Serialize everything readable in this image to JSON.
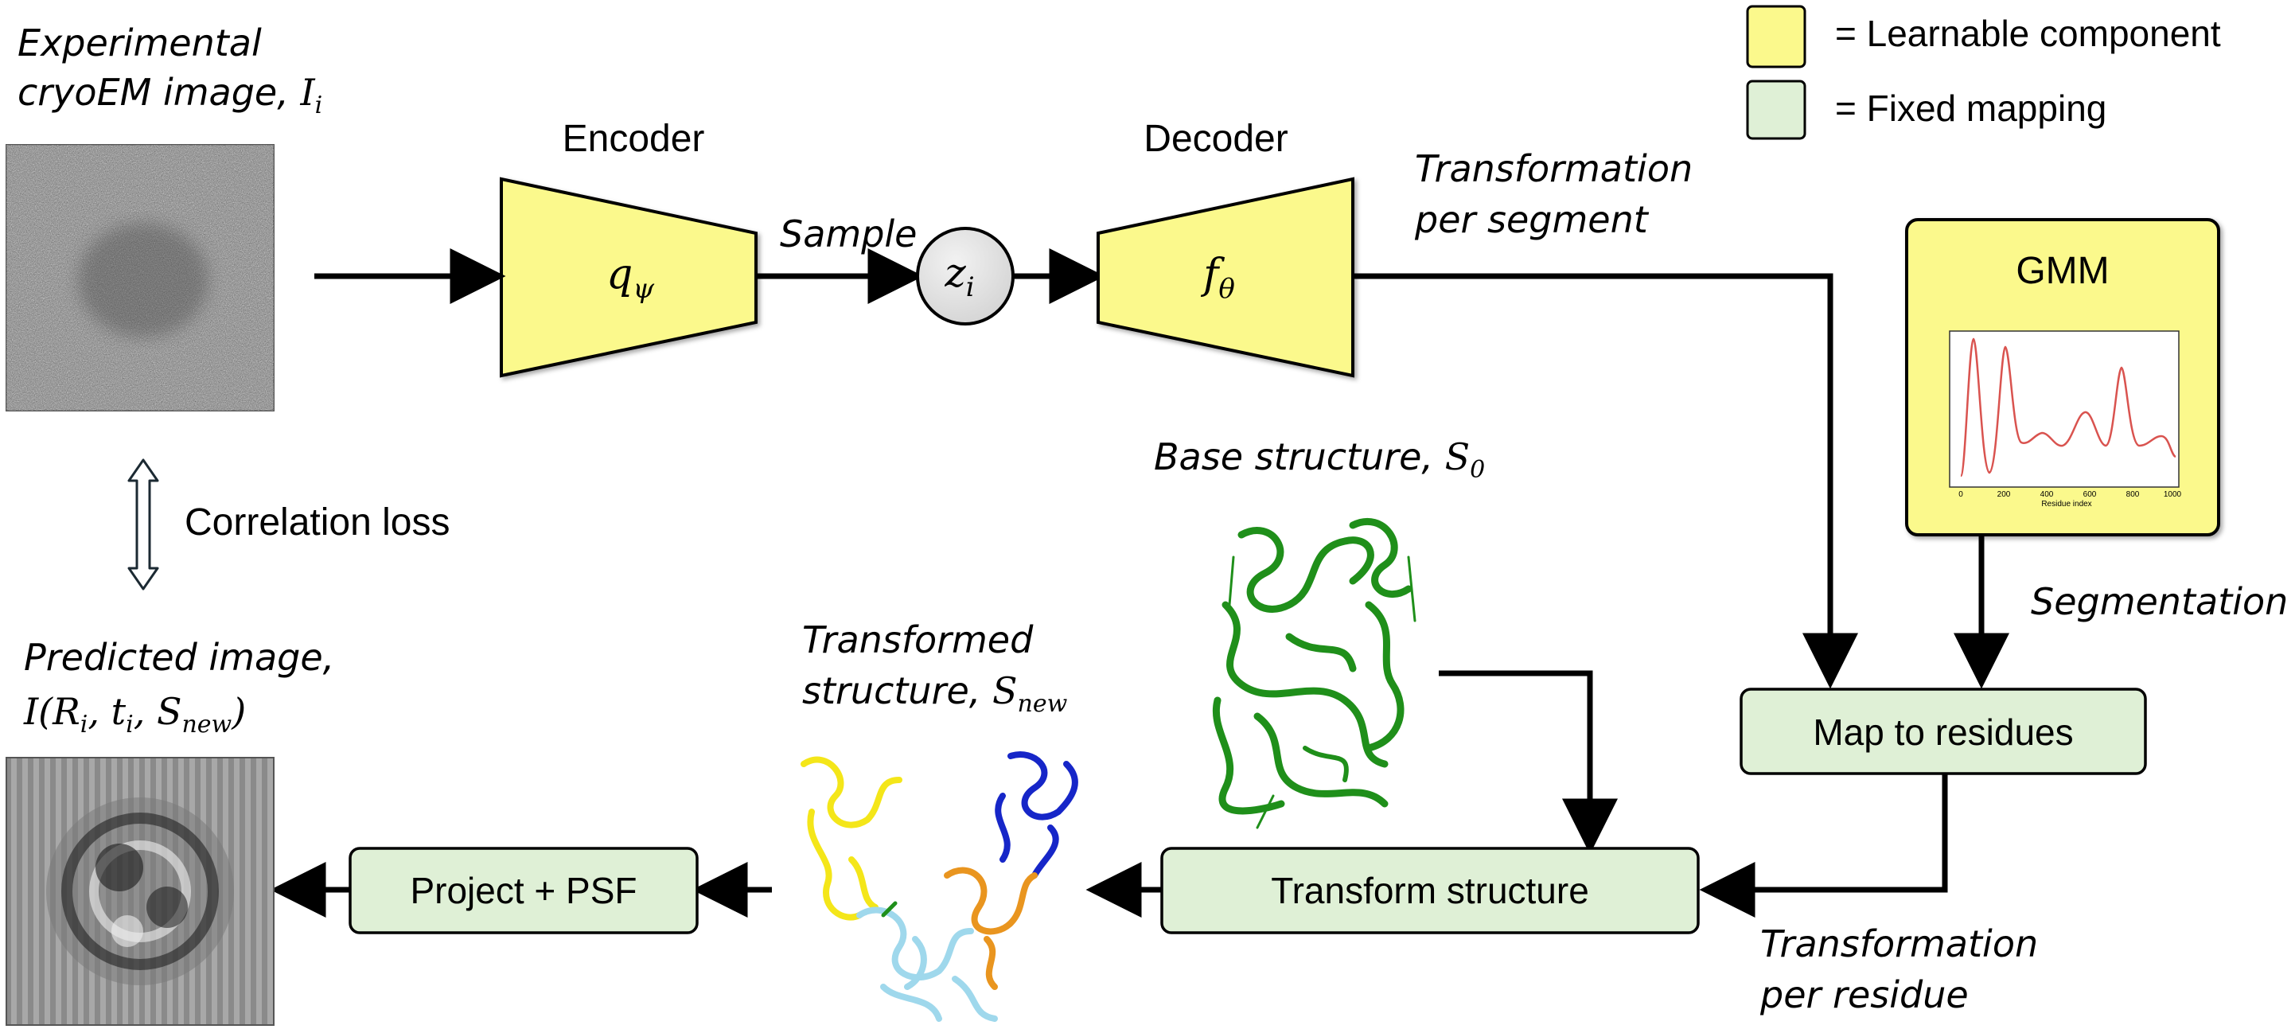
{
  "colors": {
    "learnable_fill": "#fbf98c",
    "fixed_fill": "#dff0d6",
    "arrow": "#000000",
    "gmm_curve": "#d9534f",
    "protein_green": "#1f8f1a",
    "protein_blue": "#1626c8",
    "protein_yellow": "#f4e619",
    "protein_orange": "#e9951f",
    "protein_lightblue": "#9fd8ec"
  },
  "legend": {
    "learnable": "= Learnable component",
    "fixed": "= Fixed mapping"
  },
  "input": {
    "title_line1": "Experimental",
    "title_line2": "cryoEM image, ",
    "symbol": "I",
    "subscript": "i"
  },
  "encoder": {
    "title": "Encoder",
    "symbol": "q",
    "subscript": "ψ"
  },
  "sample_label": "Sample",
  "latent": {
    "symbol": "z",
    "subscript": "i"
  },
  "decoder": {
    "title": "Decoder",
    "symbol": "f",
    "subscript": "θ"
  },
  "transform_segment": {
    "line1": "Transformation",
    "line2": "per segment"
  },
  "gmm": {
    "title": "GMM",
    "xlabel": "Residue index",
    "xticks": [
      "0",
      "200",
      "400",
      "600",
      "800",
      "1000"
    ]
  },
  "segmentation_label": "Segmentation",
  "base_structure": {
    "text": "Base structure, ",
    "symbol": "S",
    "subscript": "0"
  },
  "map_residues": "Map to residues",
  "transform_structure": "Transform structure",
  "transform_residue": {
    "line1": "Transformation",
    "line2": "per residue"
  },
  "transformed_structure": {
    "line1": "Transformed",
    "line2": "structure, ",
    "symbol": "S",
    "subscript": "new"
  },
  "project_psf": "Project + PSF",
  "predicted": {
    "line1": "Predicted image,",
    "line2_prefix": "I(R",
    "r_sub": "i",
    "mid": ", t",
    "t_sub": "i",
    "mid2": ", S",
    "s_sub": "new",
    "end": ")"
  },
  "correlation_loss": "Correlation loss"
}
